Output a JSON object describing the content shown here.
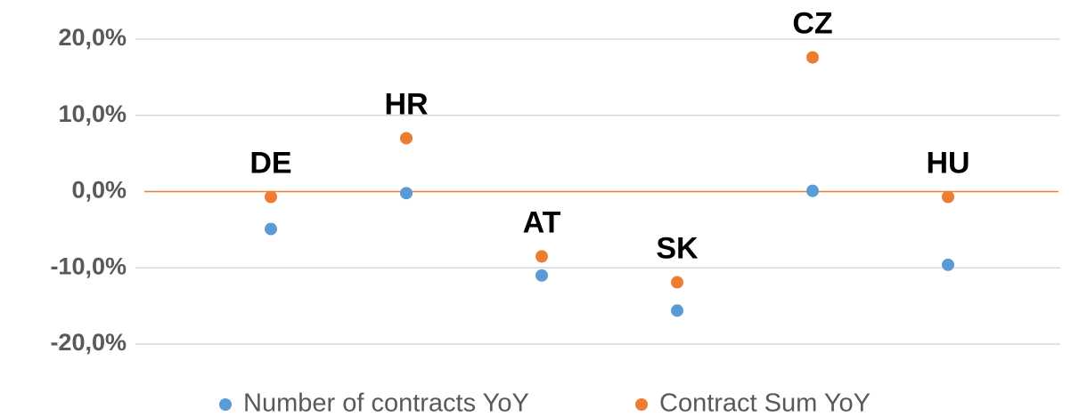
{
  "chart_data": {
    "type": "scatter",
    "categories": [
      "DE",
      "HR",
      "AT",
      "SK",
      "CZ",
      "HU"
    ],
    "series": [
      {
        "name": "Number of contracts YoY",
        "color": "#5b9bd5",
        "values": [
          -4.9,
          -0.2,
          -11.0,
          -15.6,
          0.1,
          -9.6
        ]
      },
      {
        "name": "Contract Sum YoY",
        "color": "#ed7d31",
        "values": [
          -0.7,
          7.0,
          -8.5,
          -11.9,
          17.6,
          -0.7
        ]
      }
    ],
    "ylim": [
      -20,
      20
    ],
    "yticks": [
      {
        "value": 20,
        "label": "20,0%"
      },
      {
        "value": 10,
        "label": "10,0%"
      },
      {
        "value": 0,
        "label": "0,0%"
      },
      {
        "value": -10,
        "label": "-10,0%"
      },
      {
        "value": -20,
        "label": "-20,0%"
      }
    ],
    "grid": true,
    "zero_line_color": "#ed7d31",
    "legend": "bottom"
  }
}
